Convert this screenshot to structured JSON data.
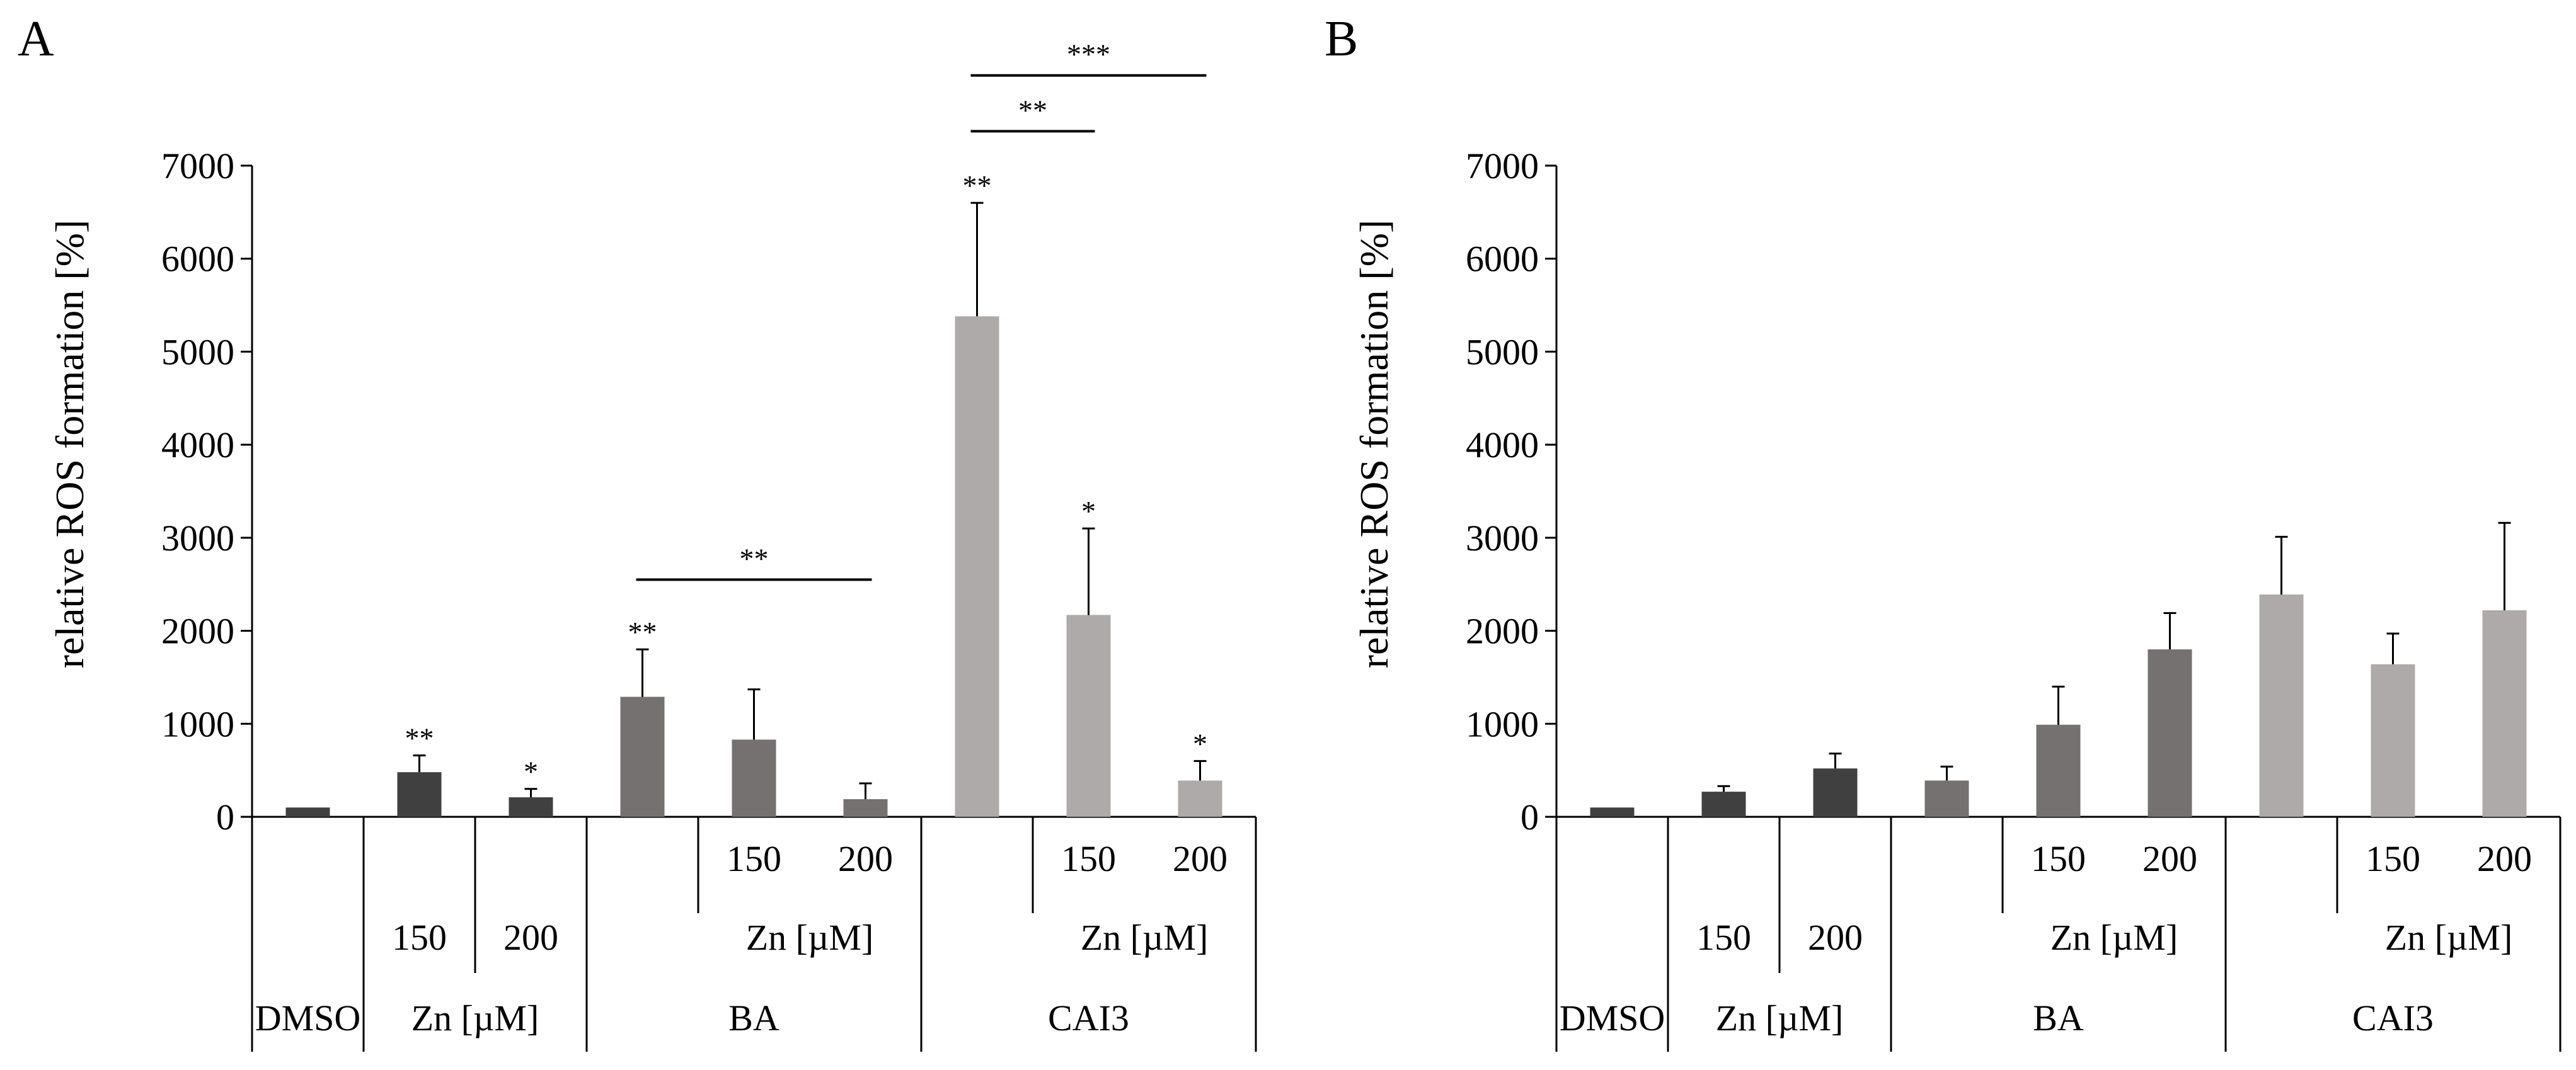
{
  "chart_data": [
    {
      "type": "bar",
      "panel_label": "A",
      "ylabel": "relative ROS formation [%]",
      "ylim": [
        0,
        7000
      ],
      "yticks": [
        "0",
        "1000",
        "2000",
        "3000",
        "4000",
        "5000",
        "6000",
        "7000"
      ],
      "grid": false,
      "bars": [
        {
          "group": "DMSO",
          "zn": "",
          "value": 100,
          "error": 0,
          "sig": ""
        },
        {
          "group": "Zn",
          "zn": "",
          "value": 480,
          "error": 180,
          "sig": "**"
        },
        {
          "group": "Zn",
          "zn": "",
          "value": 210,
          "error": 90,
          "sig": "*"
        },
        {
          "group": "BA",
          "zn": "",
          "value": 1290,
          "error": 510,
          "sig": "**"
        },
        {
          "group": "BA",
          "zn": "150",
          "value": 830,
          "error": 540,
          "sig": ""
        },
        {
          "group": "BA",
          "zn": "200",
          "value": 190,
          "error": 170,
          "sig": ""
        },
        {
          "group": "CAI3",
          "zn": "",
          "value": 5380,
          "error": 1220,
          "sig": "**"
        },
        {
          "group": "CAI3",
          "zn": "150",
          "value": 2170,
          "error": 930,
          "sig": "*"
        },
        {
          "group": "CAI3",
          "zn": "200",
          "value": 390,
          "error": 210,
          "sig": "*"
        }
      ],
      "comparisons": [
        {
          "from_bar": 3,
          "to_bar": 5,
          "label": "**",
          "level": 2550
        },
        {
          "from_bar": 6,
          "to_bar": 7,
          "label": "**",
          "level": 7370
        },
        {
          "from_bar": 6,
          "to_bar": 8,
          "label": "***",
          "level": 7970
        }
      ],
      "axis_rows": {
        "zn_row": [
          "",
          "150",
          "200",
          "",
          "",
          "",
          "",
          "",
          ""
        ],
        "bottom_row": [
          {
            "label": "DMSO",
            "span": [
              0,
              0
            ]
          },
          {
            "label": "Zn [µM]",
            "span": [
              1,
              2
            ]
          },
          {
            "label": "BA",
            "span": [
              3,
              5
            ]
          },
          {
            "label": "CAI3",
            "span": [
              6,
              8
            ]
          }
        ],
        "sub_labels": [
          {
            "label": "Zn [µM]",
            "span": [
              4,
              5
            ]
          },
          {
            "label": "Zn [µM]",
            "span": [
              7,
              8
            ]
          }
        ]
      }
    },
    {
      "type": "bar",
      "panel_label": "B",
      "ylabel": "relative ROS formation [%]",
      "ylim": [
        0,
        7000
      ],
      "yticks": [
        "0",
        "1000",
        "2000",
        "3000",
        "4000",
        "5000",
        "6000",
        "7000"
      ],
      "grid": false,
      "bars": [
        {
          "group": "DMSO",
          "zn": "",
          "value": 100,
          "error": 0,
          "sig": ""
        },
        {
          "group": "Zn",
          "zn": "",
          "value": 270,
          "error": 60,
          "sig": ""
        },
        {
          "group": "Zn",
          "zn": "",
          "value": 520,
          "error": 160,
          "sig": ""
        },
        {
          "group": "BA",
          "zn": "",
          "value": 390,
          "error": 150,
          "sig": ""
        },
        {
          "group": "BA",
          "zn": "150",
          "value": 990,
          "error": 410,
          "sig": ""
        },
        {
          "group": "BA",
          "zn": "200",
          "value": 1800,
          "error": 390,
          "sig": ""
        },
        {
          "group": "CAI3",
          "zn": "",
          "value": 2390,
          "error": 620,
          "sig": ""
        },
        {
          "group": "CAI3",
          "zn": "150",
          "value": 1640,
          "error": 330,
          "sig": ""
        },
        {
          "group": "CAI3",
          "zn": "200",
          "value": 2220,
          "error": 940,
          "sig": ""
        }
      ],
      "comparisons": [],
      "axis_rows": {
        "zn_row": [
          "",
          "150",
          "200",
          "",
          "",
          "",
          "",
          "",
          ""
        ],
        "bottom_row": [
          {
            "label": "DMSO",
            "span": [
              0,
              0
            ]
          },
          {
            "label": "Zn [µM]",
            "span": [
              1,
              2
            ]
          },
          {
            "label": "BA",
            "span": [
              3,
              5
            ]
          },
          {
            "label": "CAI3",
            "span": [
              6,
              8
            ]
          }
        ],
        "sub_labels": [
          {
            "label": "Zn [µM]",
            "span": [
              4,
              5
            ]
          },
          {
            "label": "Zn [µM]",
            "span": [
              7,
              8
            ]
          }
        ]
      }
    }
  ],
  "colors": {
    "DMSO": "#404040",
    "Zn": "#404040",
    "BA": "#767171",
    "CAI3": "#aeaaaa",
    "axis": "#000000"
  }
}
